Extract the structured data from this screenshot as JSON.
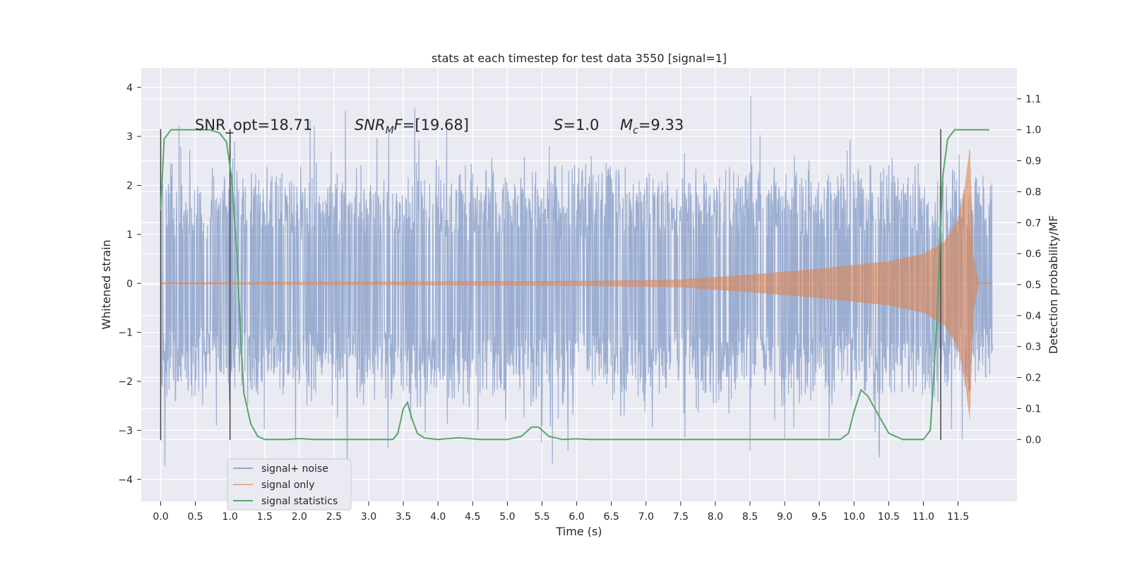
{
  "chart_data": {
    "type": "line",
    "title": "stats at each timestep for test data 3550 [signal=1]",
    "xlabel": "Time (s)",
    "ylabel": "Whitened strain",
    "y2label": "Detection probability/MF",
    "xlim": [
      -0.28,
      12.35
    ],
    "ylim": [
      -4.45,
      4.4
    ],
    "y2lim": [
      -0.2,
      1.2
    ],
    "x_ticks": [
      0.0,
      0.5,
      1.0,
      1.5,
      2.0,
      2.5,
      3.0,
      3.5,
      4.0,
      4.5,
      5.0,
      5.5,
      6.0,
      6.5,
      7.0,
      7.5,
      8.0,
      8.5,
      9.0,
      9.5,
      10.0,
      10.5,
      11.0,
      11.5
    ],
    "x_tick_labels": [
      "0.0",
      "0.5",
      "1.0",
      "1.5",
      "2.0",
      "2.5",
      "3.0",
      "3.5",
      "4.0",
      "4.5",
      "5.0",
      "5.5",
      "6.0",
      "6.5",
      "7.0",
      "7.5",
      "8.0",
      "8.5",
      "9.0",
      "9.5",
      "10.0",
      "10.5",
      "11.0",
      "11.5"
    ],
    "y_ticks": [
      4,
      3,
      2,
      1,
      0,
      -1,
      -2,
      -3,
      -4
    ],
    "y_tick_labels": [
      "4",
      "3",
      "2",
      "1",
      "0",
      "−1",
      "−2",
      "−3",
      "−4"
    ],
    "y2_ticks": [
      1.1,
      1.0,
      0.9,
      0.8,
      0.7,
      0.6,
      0.5,
      0.4,
      0.3,
      0.2,
      0.1,
      0.0
    ],
    "y2_tick_labels": [
      "1.1",
      "1.0",
      "0.9",
      "0.8",
      "0.7",
      "0.6",
      "0.5",
      "0.4",
      "0.3",
      "0.2",
      "0.1",
      "0.0"
    ],
    "grid": true,
    "legend_placement": "lower-left",
    "series": [
      {
        "name": "signal+ noise",
        "color": "#4c72b0",
        "axis": "left",
        "kind": "noise",
        "x_range": [
          0.0,
          12.0
        ],
        "envelope": 2.0,
        "peak_max": 4.05,
        "peak_min": -4.1
      },
      {
        "name": "signal only",
        "color": "#dd8452",
        "axis": "left",
        "kind": "chirp",
        "envelope": [
          [
            0.0,
            0.02
          ],
          [
            6.0,
            0.05
          ],
          [
            7.5,
            0.08
          ],
          [
            8.5,
            0.18
          ],
          [
            9.5,
            0.3
          ],
          [
            10.5,
            0.45
          ],
          [
            11.0,
            0.6
          ],
          [
            11.3,
            0.85
          ],
          [
            11.5,
            1.3
          ],
          [
            11.6,
            2.0
          ],
          [
            11.67,
            2.8
          ],
          [
            11.72,
            0.6
          ],
          [
            11.8,
            0.02
          ],
          [
            12.0,
            0.0
          ]
        ]
      },
      {
        "name": "signal statistics",
        "color": "#55a868",
        "axis": "right",
        "points": [
          [
            0.0,
            0.74
          ],
          [
            0.05,
            0.97
          ],
          [
            0.15,
            1.0
          ],
          [
            0.3,
            1.0
          ],
          [
            0.5,
            1.0
          ],
          [
            0.7,
            1.0
          ],
          [
            0.85,
            0.99
          ],
          [
            0.95,
            0.96
          ],
          [
            1.02,
            0.85
          ],
          [
            1.1,
            0.6
          ],
          [
            1.15,
            0.35
          ],
          [
            1.2,
            0.15
          ],
          [
            1.3,
            0.05
          ],
          [
            1.4,
            0.01
          ],
          [
            1.5,
            0.0
          ],
          [
            1.8,
            0.0
          ],
          [
            2.0,
            0.003
          ],
          [
            2.2,
            0.0
          ],
          [
            3.0,
            0.0
          ],
          [
            3.35,
            0.0
          ],
          [
            3.42,
            0.02
          ],
          [
            3.5,
            0.1
          ],
          [
            3.56,
            0.12
          ],
          [
            3.62,
            0.07
          ],
          [
            3.7,
            0.02
          ],
          [
            3.8,
            0.005
          ],
          [
            4.0,
            0.0
          ],
          [
            4.3,
            0.006
          ],
          [
            4.6,
            0.0
          ],
          [
            5.0,
            0.0
          ],
          [
            5.2,
            0.01
          ],
          [
            5.35,
            0.04
          ],
          [
            5.45,
            0.04
          ],
          [
            5.6,
            0.01
          ],
          [
            5.8,
            0.0
          ],
          [
            6.0,
            0.002
          ],
          [
            6.2,
            0.0
          ],
          [
            9.8,
            0.0
          ],
          [
            9.92,
            0.02
          ],
          [
            10.0,
            0.09
          ],
          [
            10.1,
            0.16
          ],
          [
            10.2,
            0.14
          ],
          [
            10.35,
            0.08
          ],
          [
            10.5,
            0.02
          ],
          [
            10.7,
            0.0
          ],
          [
            11.0,
            0.0
          ],
          [
            11.1,
            0.03
          ],
          [
            11.2,
            0.4
          ],
          [
            11.28,
            0.85
          ],
          [
            11.35,
            0.97
          ],
          [
            11.45,
            1.0
          ],
          [
            11.6,
            1.0
          ],
          [
            11.95,
            1.0
          ]
        ]
      }
    ],
    "vertical_lines": [
      0.0,
      1.0,
      11.25
    ],
    "annotations": [
      {
        "text": "SNR_opt=18.71",
        "x": 0.2,
        "y": 3.2
      },
      {
        "text": "SNRMF=[19.68]",
        "x": 2.6,
        "y": 3.2
      },
      {
        "text": "S=1.0",
        "x": 5.6,
        "y": 3.2
      },
      {
        "text": "Mc=9.33",
        "x": 6.6,
        "y": 3.2
      }
    ]
  }
}
